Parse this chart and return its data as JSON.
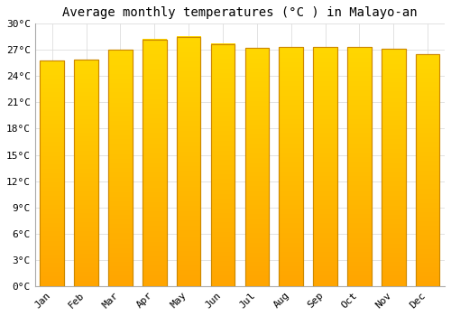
{
  "title": "Average monthly temperatures (°C ) in Malayo-an",
  "months": [
    "Jan",
    "Feb",
    "Mar",
    "Apr",
    "May",
    "Jun",
    "Jul",
    "Aug",
    "Sep",
    "Oct",
    "Nov",
    "Dec"
  ],
  "values": [
    25.8,
    25.9,
    27.0,
    28.2,
    28.5,
    27.7,
    27.2,
    27.3,
    27.3,
    27.3,
    27.1,
    26.5
  ],
  "bar_color": "#FFA500",
  "bar_top_color": "#FFD700",
  "bar_edge_color": "#CC8800",
  "ylim": [
    0,
    30
  ],
  "yticks": [
    0,
    3,
    6,
    9,
    12,
    15,
    18,
    21,
    24,
    27,
    30
  ],
  "ytick_labels": [
    "0°C",
    "3°C",
    "6°C",
    "9°C",
    "12°C",
    "15°C",
    "18°C",
    "21°C",
    "24°C",
    "27°C",
    "30°C"
  ],
  "background_color": "#ffffff",
  "grid_color": "#dddddd",
  "title_fontsize": 10,
  "tick_fontsize": 8
}
